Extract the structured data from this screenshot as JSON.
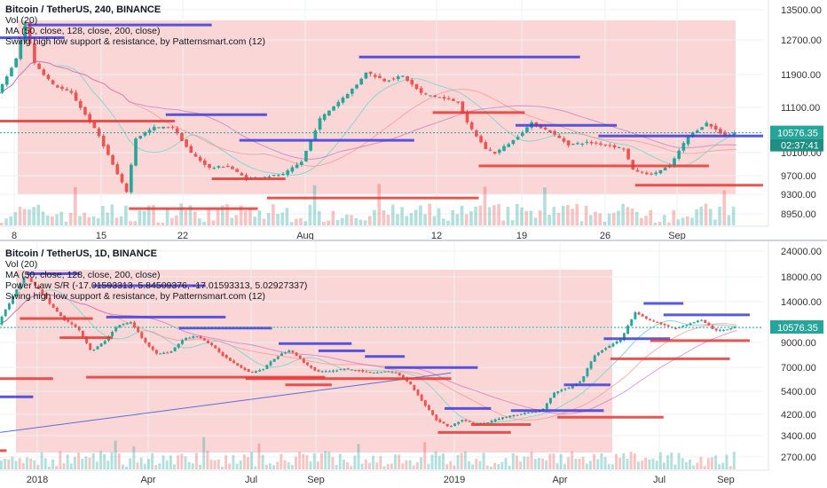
{
  "colors": {
    "up": "#26a69a",
    "down": "#ef5350",
    "highlight": "#f8c8c8",
    "support": "#e53935",
    "resistance": "#3d3ddb",
    "ma50": "#7fd6cf",
    "ma128": "#ff8f8f",
    "ma200": "#c55fc5",
    "power_law": "#5b6fd6",
    "price_tag": "#26a69a",
    "countdown_tag": "#1f8f84"
  },
  "top_panel": {
    "legend": [
      "Bitcoin / TetherUS, 240, BINANCE",
      "Vol (20)",
      "MA (50, close, 128, close, 200, close)",
      "Swing high low support & resistance, by Patternsmart.com (12)"
    ],
    "price_tag": "10576.35",
    "countdown_tag": "02:37:41"
  },
  "bottom_panel": {
    "legend": [
      "Bitcoin / TetherUS, 1D, BINANCE",
      "Vol (20)",
      "MA (50, close, 128, close, 200, close)",
      "Power Law S/R (-17.01593313, 5.84509376, -17.01593313, 5.02927337)",
      "Swing high low support & resistance, by Patternsmart.com (12)"
    ],
    "price_tag": "10576.35"
  },
  "chart_data": [
    {
      "type": "candlestick",
      "symbol": "Bitcoin / TetherUS",
      "interval": "240",
      "exchange": "BINANCE",
      "x_tick_labels": [
        "8",
        "15",
        "22",
        "Aug",
        "12",
        "19",
        "26",
        "Sep"
      ],
      "y_tick_labels": [
        "13500.00",
        "12700.00",
        "11900.00",
        "11100.00",
        "10100.00",
        "9700.00",
        "9300.00",
        "8950.00"
      ],
      "ylim": [
        8700,
        13600
      ],
      "last_price": 10576.35,
      "close_path": [
        [
          0,
          11500
        ],
        [
          2,
          12300
        ],
        [
          3,
          13150
        ],
        [
          4,
          12200
        ],
        [
          6,
          11700
        ],
        [
          8,
          11500
        ],
        [
          11,
          10500
        ],
        [
          13,
          9600
        ],
        [
          14,
          9200
        ],
        [
          15,
          10450
        ],
        [
          17,
          10700
        ],
        [
          19,
          10700
        ],
        [
          21,
          10100
        ],
        [
          23,
          9750
        ],
        [
          25,
          9800
        ],
        [
          27,
          9500
        ],
        [
          29,
          9550
        ],
        [
          31,
          9600
        ],
        [
          33,
          9900
        ],
        [
          35,
          10900
        ],
        [
          37,
          11300
        ],
        [
          39,
          11700
        ],
        [
          40,
          12000
        ],
        [
          42,
          11800
        ],
        [
          44,
          11900
        ],
        [
          46,
          11500
        ],
        [
          48,
          11400
        ],
        [
          50,
          11300
        ],
        [
          51,
          10800
        ],
        [
          53,
          10200
        ],
        [
          54,
          10100
        ],
        [
          56,
          10400
        ],
        [
          58,
          10800
        ],
        [
          60,
          10600
        ],
        [
          62,
          10300
        ],
        [
          64,
          10350
        ],
        [
          66,
          10300
        ],
        [
          68,
          10200
        ],
        [
          69,
          9700
        ],
        [
          71,
          9600
        ],
        [
          73,
          9800
        ],
        [
          75,
          10500
        ],
        [
          77,
          10800
        ],
        [
          79,
          10500
        ],
        [
          80,
          10576
        ]
      ],
      "support_resistance": [
        {
          "kind": "resistance",
          "level": 13100,
          "x": [
            3,
            23
          ]
        },
        {
          "kind": "resistance",
          "level": 12800,
          "x": [
            0,
            7
          ]
        },
        {
          "kind": "resistance",
          "level": 12350,
          "x": [
            39,
            63
          ]
        },
        {
          "kind": "resistance",
          "level": 11000,
          "x": [
            18,
            29
          ]
        },
        {
          "kind": "resistance",
          "level": 10750,
          "x": [
            56,
            67
          ]
        },
        {
          "kind": "resistance",
          "level": 10400,
          "x": [
            26,
            45
          ]
        },
        {
          "kind": "resistance",
          "level": 10500,
          "x": [
            65,
            83
          ]
        },
        {
          "kind": "support",
          "level": 10850,
          "x": [
            0,
            19
          ]
        },
        {
          "kind": "support",
          "level": 11050,
          "x": [
            47,
            57
          ]
        },
        {
          "kind": "support",
          "level": 9800,
          "x": [
            52,
            77
          ]
        },
        {
          "kind": "support",
          "level": 9500,
          "x": [
            23,
            31
          ]
        },
        {
          "kind": "support",
          "level": 9350,
          "x": [
            69,
            83
          ]
        },
        {
          "kind": "support",
          "level": 9050,
          "x": [
            29,
            52
          ]
        },
        {
          "kind": "support",
          "level": 8800,
          "x": [
            14,
            28
          ]
        }
      ]
    },
    {
      "type": "candlestick",
      "symbol": "Bitcoin / TetherUS",
      "interval": "1D",
      "exchange": "BINANCE",
      "y_scale": "log",
      "x_tick_labels": [
        "2018",
        "Apr",
        "Jul",
        "Sep",
        "2019",
        "Apr",
        "Jul",
        "Sep"
      ],
      "y_tick_labels": [
        "24000.00",
        "18000.00",
        "14000.00",
        "10576.35",
        "9000.00",
        "7000.00",
        "5400.00",
        "4200.00",
        "3400.00",
        "2700.00"
      ],
      "ylim": [
        2300,
        26000
      ],
      "last_price": 10576.35,
      "close_path": [
        [
          0,
          11000
        ],
        [
          2,
          14500
        ],
        [
          4,
          19000
        ],
        [
          6,
          16500
        ],
        [
          8,
          13500
        ],
        [
          10,
          11500
        ],
        [
          12,
          10500
        ],
        [
          14,
          8000
        ],
        [
          16,
          9000
        ],
        [
          18,
          10800
        ],
        [
          20,
          11200
        ],
        [
          22,
          9000
        ],
        [
          24,
          7800
        ],
        [
          26,
          8000
        ],
        [
          28,
          9300
        ],
        [
          30,
          9600
        ],
        [
          32,
          8700
        ],
        [
          34,
          7600
        ],
        [
          36,
          6900
        ],
        [
          38,
          6300
        ],
        [
          40,
          6600
        ],
        [
          42,
          7600
        ],
        [
          44,
          8200
        ],
        [
          46,
          7100
        ],
        [
          48,
          6400
        ],
        [
          50,
          6400
        ],
        [
          52,
          6600
        ],
        [
          54,
          6500
        ],
        [
          56,
          6300
        ],
        [
          58,
          6400
        ],
        [
          60,
          6300
        ],
        [
          62,
          5600
        ],
        [
          64,
          4500
        ],
        [
          66,
          3700
        ],
        [
          68,
          3400
        ],
        [
          70,
          3700
        ],
        [
          72,
          3500
        ],
        [
          74,
          3600
        ],
        [
          76,
          3800
        ],
        [
          78,
          3900
        ],
        [
          80,
          4000
        ],
        [
          82,
          4100
        ],
        [
          84,
          5100
        ],
        [
          86,
          5300
        ],
        [
          88,
          5800
        ],
        [
          90,
          7800
        ],
        [
          92,
          8500
        ],
        [
          94,
          9300
        ],
        [
          96,
          12500
        ],
        [
          98,
          11500
        ],
        [
          100,
          11000
        ],
        [
          102,
          10400
        ],
        [
          104,
          11000
        ],
        [
          106,
          11500
        ],
        [
          108,
          10200
        ],
        [
          110,
          10400
        ],
        [
          111,
          10576
        ]
      ],
      "support_resistance": [
        {
          "kind": "resistance",
          "level": 19500,
          "x": [
            4,
            12
          ]
        },
        {
          "kind": "resistance",
          "level": 17000,
          "x": [
            14,
            31
          ]
        },
        {
          "kind": "resistance",
          "level": 11900,
          "x": [
            16,
            34
          ]
        },
        {
          "kind": "resistance",
          "level": 10500,
          "x": [
            27,
            41
          ]
        },
        {
          "kind": "resistance",
          "level": 8800,
          "x": [
            42,
            53
          ]
        },
        {
          "kind": "resistance",
          "level": 8100,
          "x": [
            48,
            55
          ]
        },
        {
          "kind": "resistance",
          "level": 7600,
          "x": [
            55,
            61
          ]
        },
        {
          "kind": "resistance",
          "level": 6700,
          "x": [
            58,
            72
          ]
        },
        {
          "kind": "resistance",
          "level": 4200,
          "x": [
            67,
            74
          ]
        },
        {
          "kind": "resistance",
          "level": 4100,
          "x": [
            77,
            91
          ]
        },
        {
          "kind": "resistance",
          "level": 5500,
          "x": [
            85,
            92
          ]
        },
        {
          "kind": "resistance",
          "level": 13900,
          "x": [
            97,
            103
          ]
        },
        {
          "kind": "resistance",
          "level": 12200,
          "x": [
            100,
            113
          ]
        },
        {
          "kind": "resistance",
          "level": 9300,
          "x": [
            91,
            101
          ]
        },
        {
          "kind": "resistance",
          "level": 4800,
          "x": [
            0,
            5
          ]
        },
        {
          "kind": "support",
          "level": 11700,
          "x": [
            3,
            14
          ]
        },
        {
          "kind": "support",
          "level": 9400,
          "x": [
            9,
            17
          ]
        },
        {
          "kind": "support",
          "level": 5900,
          "x": [
            0,
            8
          ]
        },
        {
          "kind": "support",
          "level": 6000,
          "x": [
            13,
            49
          ]
        },
        {
          "kind": "support",
          "level": 5900,
          "x": [
            37,
            68
          ]
        },
        {
          "kind": "support",
          "level": 5500,
          "x": [
            43,
            50
          ]
        },
        {
          "kind": "support",
          "level": 3500,
          "x": [
            71,
            80
          ]
        },
        {
          "kind": "support",
          "level": 3200,
          "x": [
            66,
            77
          ]
        },
        {
          "kind": "support",
          "level": 3800,
          "x": [
            84,
            100
          ]
        },
        {
          "kind": "support",
          "level": 7400,
          "x": [
            92,
            110
          ]
        },
        {
          "kind": "support",
          "level": 9100,
          "x": [
            98,
            113
          ]
        },
        {
          "kind": "support",
          "level": 2600,
          "x": [
            0,
            1
          ]
        }
      ],
      "power_law_line": {
        "from": [
          0,
          3200
        ],
        "to": [
          68,
          6300
        ]
      }
    }
  ]
}
